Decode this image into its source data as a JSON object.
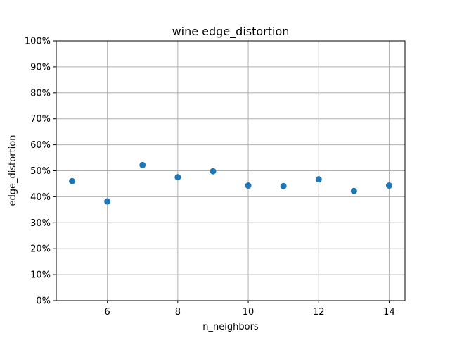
{
  "chart_data": {
    "type": "scatter",
    "title": "wine edge_distortion",
    "xlabel": "n_neighbors",
    "ylabel": "edge_distortion",
    "x": [
      5,
      6,
      7,
      8,
      9,
      10,
      11,
      12,
      13,
      14
    ],
    "y": [
      0.46,
      0.382,
      0.522,
      0.475,
      0.498,
      0.443,
      0.441,
      0.467,
      0.422,
      0.443
    ],
    "xlim": [
      4.55,
      14.45
    ],
    "ylim": [
      0,
      1
    ],
    "xticks": [
      6,
      8,
      10,
      12,
      14
    ],
    "yticks": [
      0,
      0.1,
      0.2,
      0.3,
      0.4,
      0.5,
      0.6,
      0.7,
      0.8,
      0.9,
      1.0
    ],
    "ytick_labels": [
      "0%",
      "10%",
      "20%",
      "30%",
      "40%",
      "50%",
      "60%",
      "70%",
      "80%",
      "90%",
      "100%"
    ],
    "grid": true,
    "marker_color": "#1f77b4"
  }
}
